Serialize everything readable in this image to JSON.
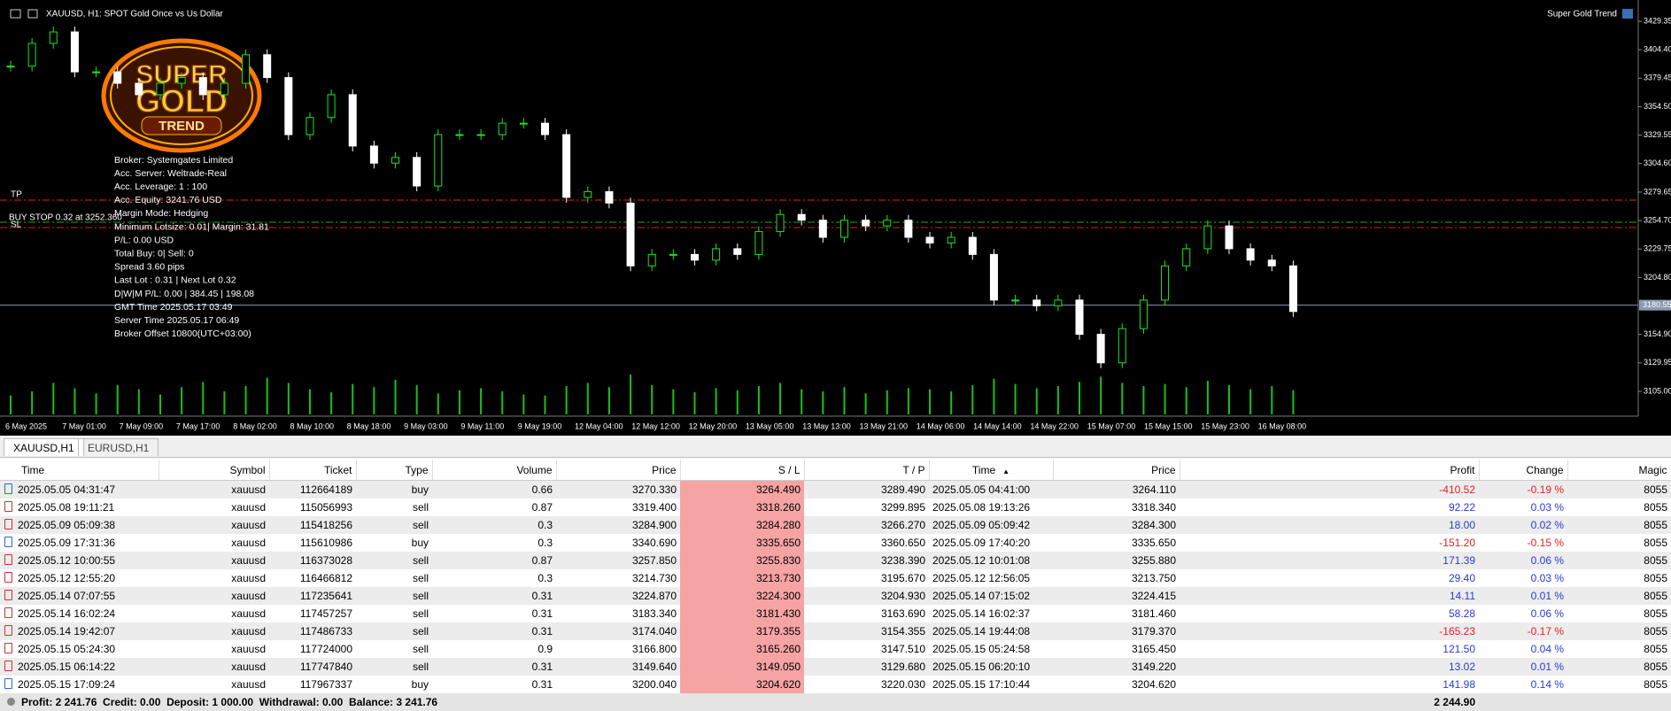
{
  "chart": {
    "header": "XAUUSD, H1:  SPOT Gold Once vs Us Dollar",
    "indicator": "Super Gold Trend",
    "logo": [
      "SUPER",
      "GOLD",
      "TREND"
    ],
    "info": [
      "Broker:  Systemgates Limited",
      "Acc. Server:  Weltrade-Real",
      "Acc. Leverage:  1 : 100",
      "Acc. Equity:  3241.76 USD",
      "Margin Mode:  Hedging",
      "Minimum Lotsize: 0.01| Margin: 31.81",
      "P/L:  0.00 USD",
      "Total Buy: 0| Sell: 0",
      "Spread 3.60 pips",
      "Last Lot :  0.31 | Next Lot 0.32",
      "D|W|M P/L: 0.00 | 384.45 | 198.08",
      "GMT Time 2025.05.17 03:49",
      "Server Time 2025.05.17 06:49",
      "Broker Offset 10800(UTC+03:00)"
    ],
    "level_labels": {
      "tp": "TP",
      "buy_stop": "BUY STOP 0.32 at 3252.360",
      "sl": "SL"
    },
    "price_ticks": [
      3429.35,
      {
        "value": 3404.4,
        "label": "3404.40"
      },
      3379.45,
      {
        "value": 3354.5,
        "label": "3354.50"
      },
      3329.55,
      {
        "value": 3304.6,
        "label": "3304.60"
      },
      3279.65,
      {
        "value": 3254.7,
        "label": "3254.70"
      },
      3229.75,
      {
        "value": 3204.8,
        "label": "3204.80"
      },
      {
        "value": 3154.9,
        "label": "3154.90"
      },
      3129.95,
      {
        "value": 3105.0,
        "label": "3105.00"
      }
    ],
    "current_price": 3180.55,
    "time_labels": [
      "6 May 2025",
      "7 May 01:00",
      "7 May 09:00",
      "7 May 17:00",
      "8 May 02:00",
      "8 May 10:00",
      "8 May 18:00",
      "9 May 03:00",
      "9 May 11:00",
      "9 May 19:00",
      "12 May 04:00",
      "12 May 12:00",
      "12 May 20:00",
      "13 May 05:00",
      "13 May 13:00",
      "13 May 21:00",
      "14 May 06:00",
      "14 May 14:00",
      "14 May 22:00",
      "15 May 07:00",
      "15 May 15:00",
      "15 May 23:00",
      "16 May 08:00"
    ],
    "closes": [
      3390,
      3410,
      3420,
      3385,
      3385,
      3375,
      3365,
      3375,
      3380,
      3365,
      3375,
      3400,
      3380,
      3330,
      3345,
      3365,
      3320,
      3305,
      3310,
      3285,
      3330,
      3330,
      3330,
      3340,
      3340,
      3330,
      3275,
      3280,
      3270,
      3215,
      3225,
      3225,
      3220,
      3230,
      3225,
      3245,
      3260,
      3255,
      3240,
      3255,
      3250,
      3255,
      3240,
      3235,
      3240,
      3225,
      3185,
      3185,
      3180,
      3185,
      3155,
      3130,
      3160,
      3185,
      3215,
      3230,
      3250,
      3230,
      3220,
      3215,
      3175
    ],
    "volumes": [
      18,
      22,
      30,
      25,
      20,
      28,
      24,
      19,
      26,
      31,
      22,
      27,
      35,
      30,
      24,
      21,
      29,
      26,
      33,
      28,
      20,
      23,
      25,
      22,
      19,
      18,
      27,
      30,
      26,
      38,
      28,
      24,
      21,
      25,
      23,
      27,
      30,
      24,
      22,
      26,
      20,
      23,
      25,
      24,
      22,
      28,
      34,
      29,
      25,
      27,
      31,
      36,
      30,
      27,
      29,
      26,
      32,
      28,
      24,
      27,
      23
    ]
  },
  "tabs": [
    "XAUUSD,H1",
    "EURUSD,H1"
  ],
  "table": {
    "columns": [
      "Time",
      "Symbol",
      "Ticket",
      "Type",
      "Volume",
      "Price",
      "S / L",
      "T / P",
      "Time",
      "Price",
      "Profit",
      "Change",
      "Magic"
    ],
    "rows": [
      [
        "2025.05.05 04:31:47",
        "xauusd",
        "112664189",
        "buy",
        "0.66",
        "3270.330",
        "3264.490",
        "3289.490",
        "2025.05.05 04:41:00",
        "3264.110",
        "-410.52",
        "-0.19 %",
        "8055"
      ],
      [
        "2025.05.08 19:11:21",
        "xauusd",
        "115056993",
        "sell",
        "0.87",
        "3319.400",
        "3318.260",
        "3299.895",
        "2025.05.08 19:13:26",
        "3318.340",
        "92.22",
        "0.03 %",
        "8055"
      ],
      [
        "2025.05.09 05:09:38",
        "xauusd",
        "115418256",
        "sell",
        "0.3",
        "3284.900",
        "3284.280",
        "3266.270",
        "2025.05.09 05:09:42",
        "3284.300",
        "18.00",
        "0.02 %",
        "8055"
      ],
      [
        "2025.05.09 17:31:36",
        "xauusd",
        "115610986",
        "buy",
        "0.3",
        "3340.690",
        "3335.650",
        "3360.650",
        "2025.05.09 17:40:20",
        "3335.650",
        "-151.20",
        "-0.15 %",
        "8055"
      ],
      [
        "2025.05.12 10:00:55",
        "xauusd",
        "116373028",
        "sell",
        "0.87",
        "3257.850",
        "3255.830",
        "3238.390",
        "2025.05.12 10:01:08",
        "3255.880",
        "171.39",
        "0.06 %",
        "8055"
      ],
      [
        "2025.05.12 12:55:20",
        "xauusd",
        "116466812",
        "sell",
        "0.3",
        "3214.730",
        "3213.730",
        "3195.670",
        "2025.05.12 12:56:05",
        "3213.750",
        "29.40",
        "0.03 %",
        "8055"
      ],
      [
        "2025.05.14 07:07:55",
        "xauusd",
        "117235641",
        "sell",
        "0.31",
        "3224.870",
        "3224.300",
        "3204.930",
        "2025.05.14 07:15:02",
        "3224.415",
        "14.11",
        "0.01 %",
        "8055"
      ],
      [
        "2025.05.14 16:02:24",
        "xauusd",
        "117457257",
        "sell",
        "0.31",
        "3183.340",
        "3181.430",
        "3163.690",
        "2025.05.14 16:02:37",
        "3181.460",
        "58.28",
        "0.06 %",
        "8055"
      ],
      [
        "2025.05.14 19:42:07",
        "xauusd",
        "117486733",
        "sell",
        "0.31",
        "3174.040",
        "3179.355",
        "3154.355",
        "2025.05.14 19:44:08",
        "3179.370",
        "-165.23",
        "-0.17 %",
        "8055"
      ],
      [
        "2025.05.15 05:24:30",
        "xauusd",
        "117724000",
        "sell",
        "0.9",
        "3166.800",
        "3165.260",
        "3147.510",
        "2025.05.15 05:24:58",
        "3165.450",
        "121.50",
        "0.04 %",
        "8055"
      ],
      [
        "2025.05.15 06:14:22",
        "xauusd",
        "117747840",
        "sell",
        "0.31",
        "3149.640",
        "3149.050",
        "3129.680",
        "2025.05.15 06:20:10",
        "3149.220",
        "13.02",
        "0.01 %",
        "8055"
      ],
      [
        "2025.05.15 17:09:24",
        "xauusd",
        "117967337",
        "buy",
        "0.31",
        "3200.040",
        "3204.620",
        "3220.030",
        "2025.05.15 17:10:44",
        "3204.620",
        "141.98",
        "0.14 %",
        "8055"
      ]
    ]
  },
  "footer": {
    "summary": "Profit: 2 241.76  Credit: 0.00  Deposit: 1 000.00  Withdrawal: 0.00  Balance: 3 241.76",
    "profit_total": "2 244.90"
  }
}
